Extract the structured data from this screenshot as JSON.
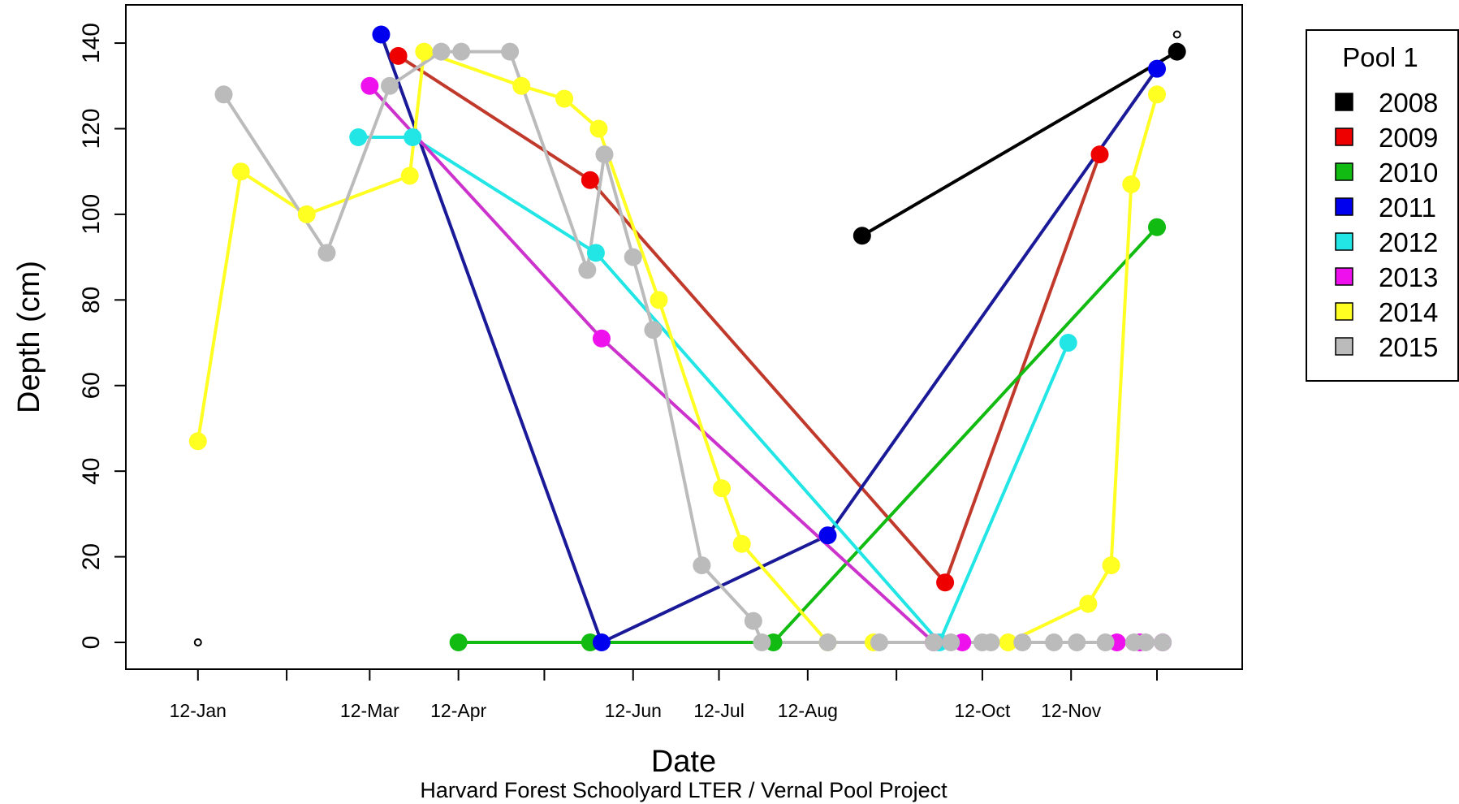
{
  "chart_data": {
    "type": "line",
    "xlabel": "Date",
    "ylabel": "Depth (cm)",
    "caption": "Harvard Forest Schoolyard LTER / Vernal Pool Project",
    "x_ticks": [
      "12-Jan",
      "12-Feb",
      "12-Mar",
      "12-Apr",
      "12-May",
      "12-Jun",
      "12-Jul",
      "12-Aug",
      "12-Sep",
      "12-Oct",
      "12-Nov",
      "12-Dec"
    ],
    "x_tick_labels_shown": [
      "12-Jan",
      "",
      "12-Mar",
      "12-Apr",
      "",
      "12-Jun",
      "12-Jul",
      "12-Aug",
      "",
      "12-Oct",
      "12-Nov",
      ""
    ],
    "xlim": [
      "2000-01-01",
      "2000-12-31"
    ],
    "ylim": [
      -5,
      145
    ],
    "y_ticks": [
      0,
      20,
      40,
      60,
      80,
      100,
      120,
      140
    ],
    "grid": false,
    "legend": {
      "title": "Pool 1",
      "position": "right"
    },
    "series": [
      {
        "name": "2008",
        "color": "#000000",
        "points": [
          [
            "2000-08-31",
            95
          ],
          [
            "2000-12-19",
            138
          ]
        ]
      },
      {
        "name": "2009",
        "color": "#ee0000",
        "line_color": "#c0392b",
        "points": [
          [
            "2000-03-22",
            137
          ],
          [
            "2000-05-28",
            108
          ],
          [
            "2000-09-29",
            14
          ],
          [
            "2000-11-22",
            114
          ]
        ]
      },
      {
        "name": "2010",
        "color": "#11bb11",
        "points": [
          [
            "2000-04-12",
            0
          ],
          [
            "2000-05-28",
            0
          ],
          [
            "2000-07-31",
            0
          ],
          [
            "2000-12-12",
            97
          ]
        ]
      },
      {
        "name": "2011",
        "color": "#0000ee",
        "line_color": "#1a1a99",
        "points": [
          [
            "2000-03-16",
            142
          ],
          [
            "2000-06-01",
            0
          ],
          [
            "2000-08-19",
            25
          ],
          [
            "2000-12-12",
            134
          ]
        ]
      },
      {
        "name": "2012",
        "color": "#22e5e5",
        "points": [
          [
            "2000-03-08",
            118
          ],
          [
            "2000-03-27",
            118
          ],
          [
            "2000-05-30",
            91
          ],
          [
            "2000-09-27",
            0
          ],
          [
            "2000-11-11",
            70
          ]
        ]
      },
      {
        "name": "2013",
        "color": "#ee11ee",
        "line_color": "#cc33cc",
        "points": [
          [
            "2000-03-12",
            130
          ],
          [
            "2000-06-01",
            71
          ],
          [
            "2000-09-25",
            0
          ],
          [
            "2000-10-05",
            0
          ],
          [
            "2000-11-28",
            0
          ],
          [
            "2000-12-06",
            0
          ],
          [
            "2000-12-14",
            0
          ]
        ]
      },
      {
        "name": "2014",
        "color": "#ffff22",
        "points": [
          [
            "2000-01-12",
            47
          ],
          [
            "2000-01-27",
            110
          ],
          [
            "2000-02-19",
            100
          ],
          [
            "2000-03-26",
            109
          ],
          [
            "2000-03-31",
            138
          ],
          [
            "2000-05-04",
            130
          ],
          [
            "2000-05-19",
            127
          ],
          [
            "2000-05-31",
            120
          ],
          [
            "2000-06-21",
            80
          ],
          [
            "2000-07-13",
            36
          ],
          [
            "2000-07-20",
            23
          ],
          [
            "2000-08-19",
            0
          ],
          [
            "2000-09-04",
            0
          ],
          [
            "2000-10-21",
            0
          ],
          [
            "2000-11-18",
            9
          ],
          [
            "2000-11-26",
            18
          ],
          [
            "2000-12-03",
            107
          ],
          [
            "2000-12-12",
            128
          ]
        ]
      },
      {
        "name": "2015",
        "color": "#bbbbbb",
        "points": [
          [
            "2000-01-21",
            128
          ],
          [
            "2000-02-26",
            91
          ],
          [
            "2000-03-19",
            130
          ],
          [
            "2000-04-06",
            138
          ],
          [
            "2000-04-13",
            138
          ],
          [
            "2000-04-30",
            138
          ],
          [
            "2000-05-27",
            87
          ],
          [
            "2000-06-02",
            114
          ],
          [
            "2000-06-12",
            90
          ],
          [
            "2000-06-19",
            73
          ],
          [
            "2000-07-06",
            18
          ],
          [
            "2000-07-24",
            5
          ],
          [
            "2000-07-27",
            0
          ],
          [
            "2000-08-19",
            0
          ],
          [
            "2000-09-06",
            0
          ],
          [
            "2000-09-25",
            0
          ],
          [
            "2000-10-01",
            0
          ],
          [
            "2000-10-12",
            0
          ],
          [
            "2000-10-15",
            0
          ],
          [
            "2000-10-26",
            0
          ],
          [
            "2000-11-06",
            0
          ],
          [
            "2000-11-14",
            0
          ],
          [
            "2000-11-24",
            0
          ],
          [
            "2000-12-04",
            0
          ],
          [
            "2000-12-08",
            0
          ],
          [
            "2000-12-14",
            0
          ]
        ]
      }
    ],
    "open_markers": [
      {
        "date": "2000-01-12",
        "value": 0
      },
      {
        "date": "2000-12-19",
        "value": 142
      }
    ]
  }
}
